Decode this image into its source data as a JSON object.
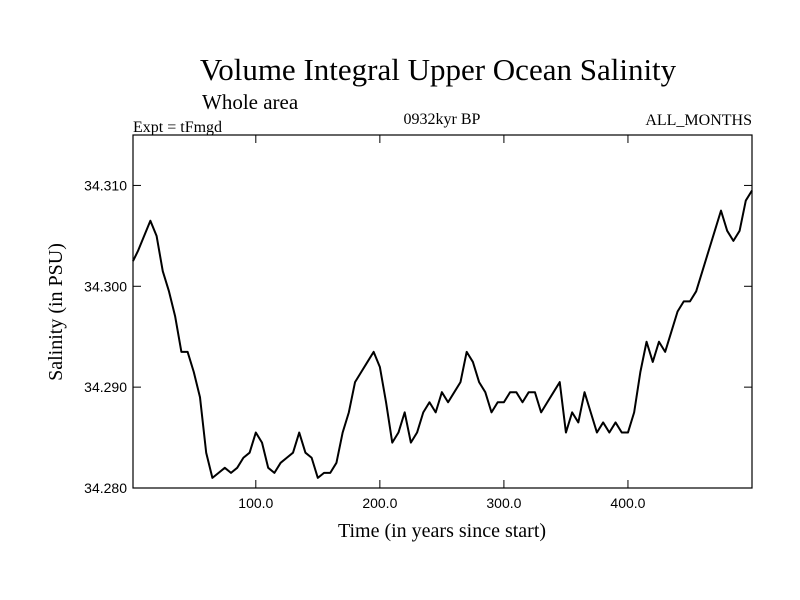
{
  "chart_data": {
    "type": "line",
    "title": "Volume Integral Upper Ocean Salinity",
    "subtitle": "Whole area",
    "header_left": "Expt = tFmgd",
    "header_center": "0932kyr BP",
    "header_right": "ALL_MONTHS",
    "xlabel": "Time (in years since start)",
    "ylabel": "Salinity (in PSU)",
    "xlim": [
      1,
      500
    ],
    "ylim": [
      34.28,
      34.315
    ],
    "x_ticks": [
      100,
      200,
      300,
      400
    ],
    "x_tick_labels": [
      "100.0",
      "200.0",
      "300.0",
      "400.0"
    ],
    "y_ticks": [
      34.28,
      34.29,
      34.3,
      34.31
    ],
    "y_tick_labels": [
      "34.280",
      "34.290",
      "34.300",
      "34.310"
    ],
    "grid": false,
    "line_color": "#000000",
    "series": [
      {
        "name": "Salinity",
        "x": [
          1,
          5,
          10,
          15,
          20,
          25,
          30,
          35,
          40,
          45,
          50,
          55,
          60,
          65,
          70,
          75,
          80,
          85,
          90,
          95,
          100,
          105,
          110,
          115,
          120,
          125,
          130,
          135,
          140,
          145,
          150,
          155,
          160,
          165,
          170,
          175,
          180,
          185,
          190,
          195,
          200,
          205,
          210,
          215,
          220,
          225,
          230,
          235,
          240,
          245,
          250,
          255,
          260,
          265,
          270,
          275,
          280,
          285,
          290,
          295,
          300,
          305,
          310,
          315,
          320,
          325,
          330,
          335,
          340,
          345,
          350,
          355,
          360,
          365,
          370,
          375,
          380,
          385,
          390,
          395,
          400,
          405,
          410,
          415,
          420,
          425,
          430,
          435,
          440,
          445,
          450,
          455,
          460,
          465,
          470,
          475,
          480,
          485,
          490,
          495,
          500
        ],
        "values": [
          34.3025,
          34.3035,
          34.305,
          34.3065,
          34.305,
          34.3015,
          34.2995,
          34.297,
          34.2935,
          34.2935,
          34.2915,
          34.289,
          34.2835,
          34.281,
          34.2815,
          34.282,
          34.2815,
          34.282,
          34.283,
          34.2835,
          34.2855,
          34.2845,
          34.282,
          34.2815,
          34.2825,
          34.283,
          34.2835,
          34.2855,
          34.2835,
          34.283,
          34.281,
          34.2815,
          34.2815,
          34.2825,
          34.2855,
          34.2875,
          34.2905,
          34.2915,
          34.2925,
          34.2935,
          34.292,
          34.2885,
          34.2845,
          34.2855,
          34.2875,
          34.2845,
          34.2855,
          34.2875,
          34.2885,
          34.2875,
          34.2895,
          34.2885,
          34.2895,
          34.2905,
          34.2935,
          34.2925,
          34.2905,
          34.2895,
          34.2875,
          34.2885,
          34.2885,
          34.2895,
          34.2895,
          34.2885,
          34.2895,
          34.2895,
          34.2875,
          34.2885,
          34.2895,
          34.2905,
          34.2855,
          34.2875,
          34.2865,
          34.2895,
          34.2875,
          34.2855,
          34.2865,
          34.2855,
          34.2865,
          34.2855,
          34.2855,
          34.2875,
          34.2915,
          34.2945,
          34.2925,
          34.2945,
          34.2935,
          34.2955,
          34.2975,
          34.2985,
          34.2985,
          34.2995,
          34.3015,
          34.3035,
          34.3055,
          34.3075,
          34.3055,
          34.3045,
          34.3055,
          34.3085,
          34.3095
        ]
      }
    ]
  }
}
